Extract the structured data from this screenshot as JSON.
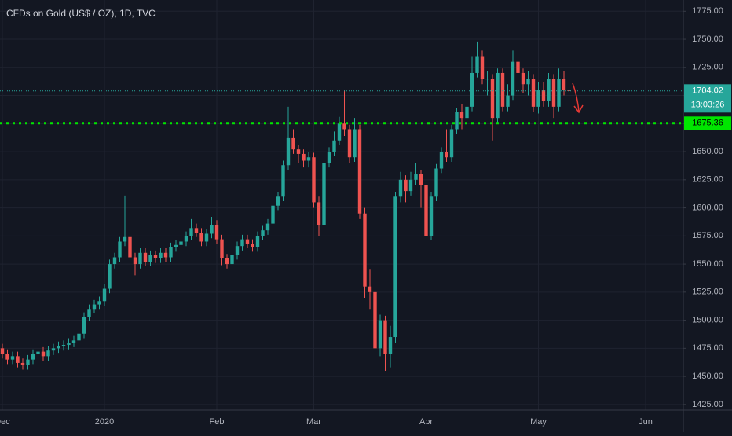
{
  "chart_data": {
    "type": "candlestick",
    "title": "CFDs on Gold (US$ / OZ), 1D, TVC",
    "up_color": "#26a69a",
    "down_color": "#ef5350",
    "grid": true,
    "categories": [
      "Dec",
      null,
      null,
      null,
      null,
      null,
      null,
      null,
      null,
      null,
      null,
      null,
      null,
      null,
      null,
      null,
      null,
      null,
      null,
      null,
      "2020",
      null,
      null,
      null,
      null,
      null,
      null,
      null,
      null,
      null,
      null,
      null,
      null,
      null,
      null,
      null,
      null,
      null,
      null,
      null,
      null,
      null,
      "Feb",
      null,
      null,
      null,
      null,
      null,
      null,
      null,
      null,
      null,
      null,
      null,
      null,
      null,
      null,
      null,
      null,
      null,
      null,
      "Mar",
      null,
      null,
      null,
      null,
      null,
      null,
      null,
      null,
      null,
      null,
      null,
      null,
      null,
      null,
      null,
      null,
      null,
      null,
      null,
      null,
      null,
      "Apr",
      null,
      null,
      null,
      null,
      null,
      null,
      null,
      null,
      null,
      null,
      null,
      null,
      null,
      null,
      null,
      null,
      null,
      null,
      null,
      null,
      null,
      "May",
      null,
      null,
      null,
      null,
      null,
      null,
      null,
      null,
      null,
      null,
      null,
      null,
      null,
      null,
      null,
      null,
      null,
      null,
      null,
      null,
      "Jun",
      null,
      null,
      null,
      null,
      null,
      null,
      null
    ],
    "open": [
      1475,
      1470,
      1465,
      1468,
      1462,
      1460,
      1465,
      1470,
      1472,
      1468,
      1473,
      1475,
      1477,
      1478,
      1480,
      1482,
      1488,
      1503,
      1510,
      1514,
      1517,
      1528,
      1550,
      1556,
      1570,
      1574,
      1556,
      1550,
      1560,
      1552,
      1558,
      1555,
      1560,
      1556,
      1565,
      1567,
      1570,
      1575,
      1582,
      1578,
      1570,
      1577,
      1585,
      1572,
      1555,
      1550,
      1558,
      1566,
      1572,
      1568,
      1565,
      1575,
      1580,
      1586,
      1602,
      1610,
      1638,
      1662,
      1652,
      1648,
      1642,
      1645,
      1605,
      1585,
      1640,
      1650,
      1660,
      1675,
      1670,
      1645,
      1670,
      1595,
      1530,
      1525,
      1475,
      1500,
      1470,
      1485,
      1610,
      1625,
      1615,
      1625,
      1630,
      1620,
      1575,
      1610,
      1635,
      1650,
      1645,
      1670,
      1685,
      1680,
      1690,
      1720,
      1735,
      1715,
      1715,
      1680,
      1720,
      1690,
      1700,
      1730,
      1720,
      1710,
      1715,
      1690,
      1705,
      1695,
      1715,
      1690,
      1715,
      1705,
      null,
      null,
      null,
      null,
      null,
      null,
      null,
      null,
      null,
      null,
      null,
      null,
      null,
      null,
      null,
      null,
      null,
      null,
      null,
      null,
      null,
      null
    ],
    "high": [
      1479,
      1474,
      1472,
      1472,
      1466,
      1469,
      1474,
      1476,
      1476,
      1477,
      1479,
      1481,
      1482,
      1484,
      1486,
      1492,
      1507,
      1514,
      1518,
      1521,
      1532,
      1554,
      1560,
      1574,
      1611,
      1578,
      1560,
      1564,
      1564,
      1562,
      1562,
      1564,
      1564,
      1569,
      1571,
      1574,
      1579,
      1590,
      1586,
      1582,
      1581,
      1592,
      1589,
      1576,
      1559,
      1562,
      1570,
      1576,
      1576,
      1572,
      1579,
      1584,
      1590,
      1606,
      1614,
      1642,
      1690,
      1670,
      1656,
      1652,
      1650,
      1649,
      1610,
      1644,
      1654,
      1668,
      1681,
      1705,
      1674,
      1680,
      1674,
      1600,
      1545,
      1530,
      1505,
      1504,
      1495,
      1614,
      1632,
      1629,
      1632,
      1640,
      1634,
      1624,
      1614,
      1639,
      1654,
      1670,
      1674,
      1689,
      1692,
      1700,
      1735,
      1748,
      1740,
      1722,
      1719,
      1724,
      1724,
      1710,
      1740,
      1736,
      1724,
      1722,
      1719,
      1712,
      1712,
      1720,
      1719,
      1724,
      1722,
      1710,
      null,
      null,
      null,
      null,
      null,
      null,
      null,
      null,
      null,
      null,
      null,
      null,
      null,
      null,
      null,
      null,
      null,
      null,
      null,
      null,
      null,
      null
    ],
    "low": [
      1466,
      1461,
      1461,
      1458,
      1456,
      1456,
      1461,
      1466,
      1464,
      1464,
      1469,
      1471,
      1473,
      1474,
      1476,
      1478,
      1484,
      1499,
      1506,
      1510,
      1513,
      1524,
      1546,
      1552,
      1566,
      1552,
      1540,
      1546,
      1548,
      1548,
      1551,
      1551,
      1552,
      1552,
      1561,
      1563,
      1566,
      1571,
      1574,
      1566,
      1566,
      1573,
      1568,
      1549,
      1546,
      1546,
      1554,
      1562,
      1564,
      1561,
      1561,
      1571,
      1576,
      1582,
      1598,
      1606,
      1634,
      1648,
      1640,
      1636,
      1636,
      1600,
      1575,
      1581,
      1636,
      1646,
      1656,
      1664,
      1640,
      1641,
      1590,
      1520,
      1510,
      1452,
      1468,
      1455,
      1458,
      1480,
      1605,
      1605,
      1611,
      1620,
      1600,
      1570,
      1571,
      1606,
      1631,
      1641,
      1641,
      1666,
      1670,
      1676,
      1686,
      1716,
      1710,
      1700,
      1660,
      1676,
      1686,
      1686,
      1696,
      1715,
      1702,
      1700,
      1685,
      1684,
      1690,
      1690,
      1680,
      1686,
      1700,
      1700,
      null,
      null,
      null,
      null,
      null,
      null,
      null,
      null,
      null,
      null,
      null,
      null,
      null,
      null,
      null,
      null,
      null,
      null,
      null,
      null,
      null,
      null
    ],
    "close": [
      1470,
      1465,
      1468,
      1462,
      1460,
      1465,
      1470,
      1472,
      1468,
      1473,
      1475,
      1477,
      1478,
      1480,
      1482,
      1488,
      1503,
      1510,
      1514,
      1517,
      1528,
      1550,
      1556,
      1570,
      1574,
      1556,
      1550,
      1560,
      1552,
      1558,
      1555,
      1560,
      1556,
      1565,
      1567,
      1570,
      1575,
      1582,
      1578,
      1570,
      1577,
      1585,
      1572,
      1555,
      1550,
      1558,
      1566,
      1572,
      1568,
      1565,
      1575,
      1580,
      1586,
      1602,
      1610,
      1638,
      1662,
      1652,
      1648,
      1642,
      1645,
      1605,
      1585,
      1640,
      1650,
      1660,
      1675,
      1670,
      1645,
      1670,
      1595,
      1530,
      1525,
      1475,
      1500,
      1470,
      1485,
      1610,
      1625,
      1615,
      1625,
      1630,
      1620,
      1575,
      1610,
      1635,
      1650,
      1645,
      1670,
      1685,
      1680,
      1690,
      1720,
      1735,
      1715,
      1715,
      1680,
      1720,
      1690,
      1700,
      1730,
      1720,
      1710,
      1715,
      1690,
      1705,
      1695,
      1715,
      1690,
      1715,
      1705,
      1704,
      null,
      null,
      null,
      null,
      null,
      null,
      null,
      null,
      null,
      null,
      null,
      null,
      null,
      null,
      null,
      null,
      null,
      null,
      null,
      null,
      null,
      null
    ],
    "ylim": [
      1420,
      1785
    ],
    "yticks": [
      {
        "value": 1425,
        "label": "1425.00"
      },
      {
        "value": 1450,
        "label": "1450.00"
      },
      {
        "value": 1475,
        "label": "1475.00"
      },
      {
        "value": 1500,
        "label": "1500.00"
      },
      {
        "value": 1525,
        "label": "1525.00"
      },
      {
        "value": 1550,
        "label": "1550.00"
      },
      {
        "value": 1575,
        "label": "1575.00"
      },
      {
        "value": 1600,
        "label": "1600.00"
      },
      {
        "value": 1625,
        "label": "1625.00"
      },
      {
        "value": 1650,
        "label": "1650.00"
      },
      {
        "value": 1675,
        "label": "1675.00"
      },
      {
        "value": 1700,
        "label": "1700.00"
      },
      {
        "value": 1725,
        "label": "1725.00"
      },
      {
        "value": 1750,
        "label": "1750.00"
      },
      {
        "value": 1775,
        "label": "1775.00"
      }
    ],
    "price_lines": [
      {
        "value": 1704.02,
        "color": "#26a69a",
        "countdown": "13:03:26"
      },
      {
        "value": 1675.36,
        "color": "#00e600"
      }
    ]
  }
}
